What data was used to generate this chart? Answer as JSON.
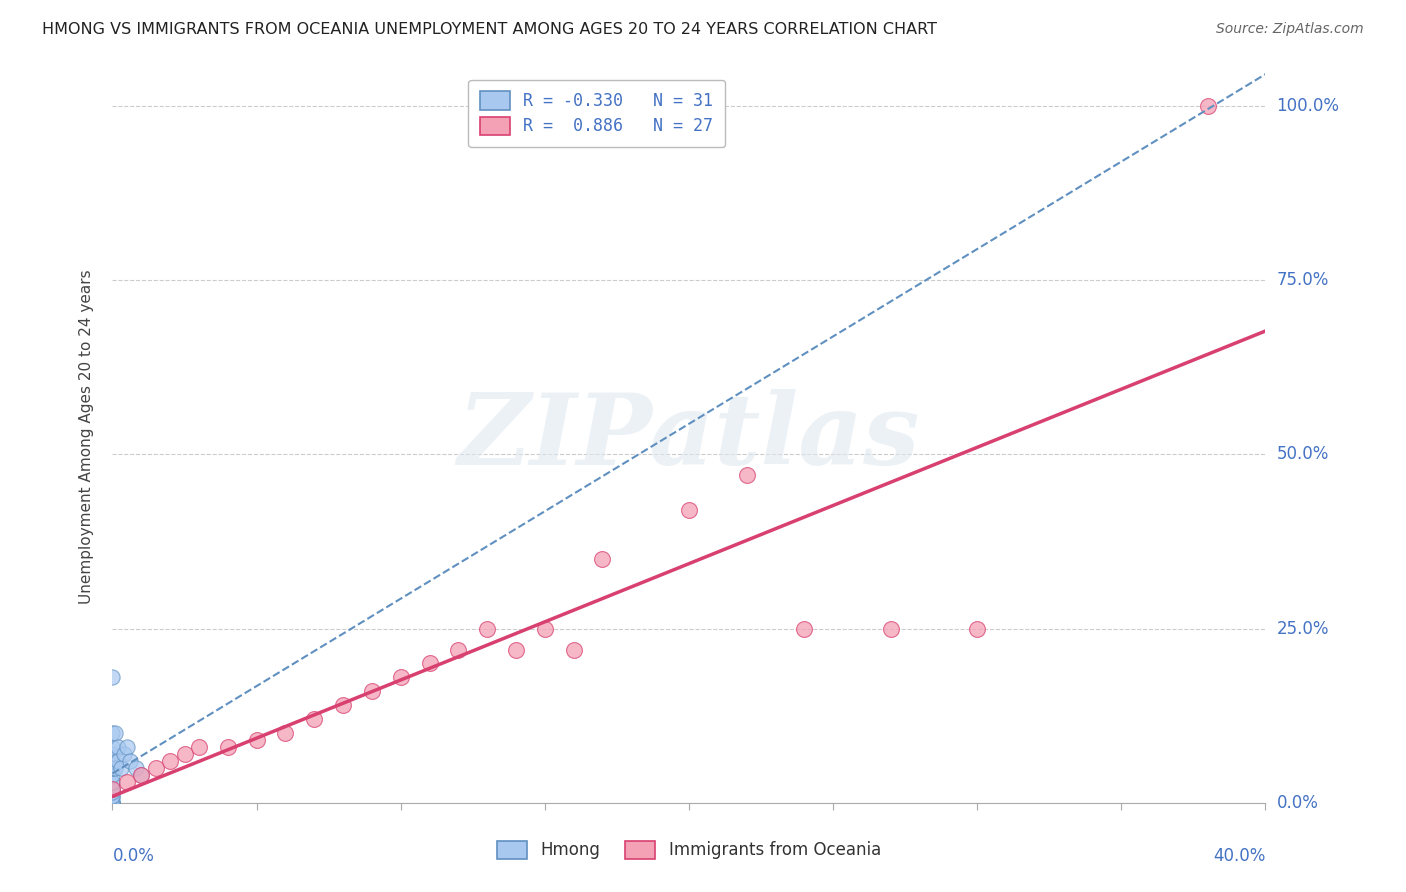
{
  "title": "HMONG VS IMMIGRANTS FROM OCEANIA UNEMPLOYMENT AMONG AGES 20 TO 24 YEARS CORRELATION CHART",
  "source": "Source: ZipAtlas.com",
  "watermark": "ZIPatlas",
  "legend_labels": [
    "Hmong",
    "Immigrants from Oceania"
  ],
  "hmong_color": "#A8C8F0",
  "oceania_color": "#F4A0B5",
  "hmong_line_color": "#6090C0",
  "oceania_line_color": "#D84070",
  "hmong_R": -0.33,
  "hmong_N": 31,
  "oceania_R": 0.886,
  "oceania_N": 27,
  "hmong_scatter_x": [
    0.0,
    0.0,
    0.0,
    0.0,
    0.0,
    0.0,
    0.0,
    0.0,
    0.0,
    0.0,
    0.0,
    0.0,
    0.0,
    0.0,
    0.0,
    0.0,
    0.0,
    0.0,
    0.0,
    0.0,
    0.0,
    0.001,
    0.001,
    0.002,
    0.002,
    0.003,
    0.004,
    0.005,
    0.006,
    0.008,
    0.01
  ],
  "hmong_scatter_y": [
    0.0,
    0.0,
    0.0,
    0.0,
    0.0,
    0.005,
    0.01,
    0.01,
    0.015,
    0.02,
    0.02,
    0.03,
    0.03,
    0.04,
    0.05,
    0.05,
    0.06,
    0.07,
    0.08,
    0.1,
    0.18,
    0.1,
    0.05,
    0.08,
    0.06,
    0.05,
    0.07,
    0.08,
    0.06,
    0.05,
    0.04
  ],
  "oceania_scatter_x": [
    0.0,
    0.005,
    0.01,
    0.015,
    0.02,
    0.025,
    0.03,
    0.04,
    0.05,
    0.06,
    0.07,
    0.08,
    0.09,
    0.1,
    0.11,
    0.12,
    0.13,
    0.14,
    0.15,
    0.16,
    0.17,
    0.2,
    0.22,
    0.24,
    0.27,
    0.3,
    0.38
  ],
  "oceania_scatter_y": [
    0.02,
    0.03,
    0.04,
    0.05,
    0.06,
    0.07,
    0.08,
    0.08,
    0.09,
    0.1,
    0.12,
    0.14,
    0.16,
    0.18,
    0.2,
    0.22,
    0.25,
    0.22,
    0.25,
    0.22,
    0.35,
    0.42,
    0.47,
    0.25,
    0.25,
    0.25,
    1.0
  ],
  "xlim": [
    0.0,
    0.4
  ],
  "ylim": [
    0.0,
    1.05
  ],
  "yticks": [
    0.0,
    0.25,
    0.5,
    0.75,
    1.0
  ],
  "ytick_labels": [
    "0.0%",
    "25.0%",
    "50.0%",
    "75.0%",
    "100.0%"
  ],
  "background_color": "#FFFFFF",
  "grid_color": "#CCCCCC"
}
